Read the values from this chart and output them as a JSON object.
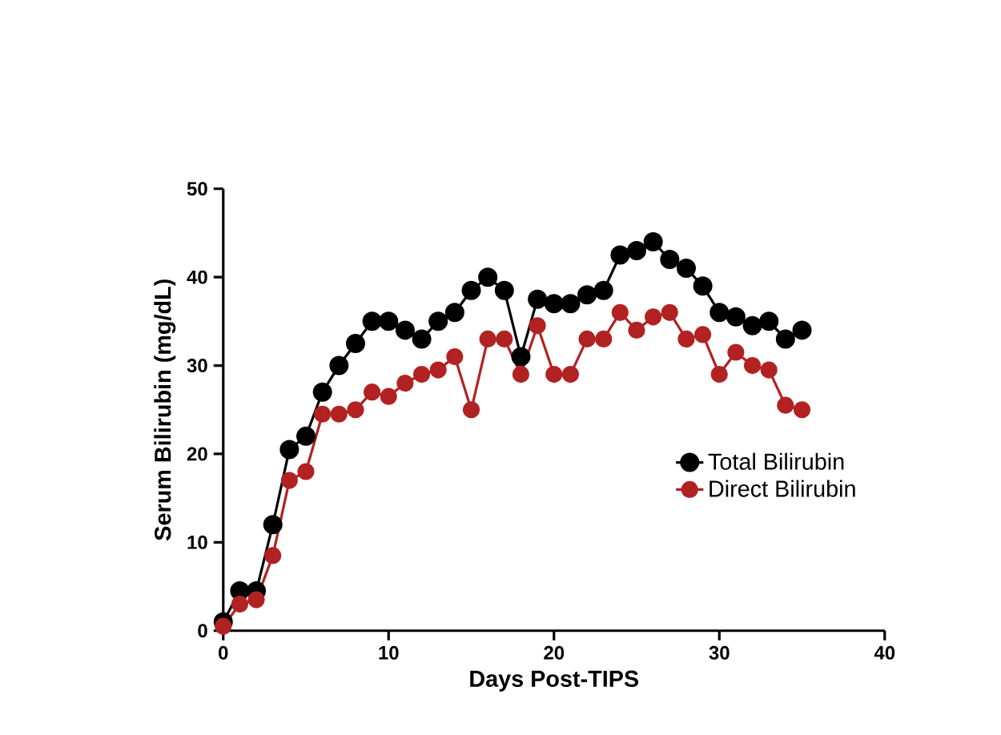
{
  "chart_data": {
    "type": "line",
    "xlabel": "Days Post-TIPS",
    "ylabel": "Serum Bilirubin (mg/dL)",
    "x": [
      0,
      1,
      2,
      3,
      4,
      5,
      6,
      7,
      8,
      9,
      10,
      11,
      12,
      13,
      14,
      15,
      16,
      17,
      18,
      19,
      20,
      21,
      22,
      23,
      24,
      25,
      26,
      27,
      28,
      29,
      30,
      31,
      32,
      33,
      34,
      35
    ],
    "series": [
      {
        "name": "Total Bilirubin",
        "color": "#000000",
        "values": [
          1,
          4.5,
          4.5,
          12,
          20.5,
          22,
          27,
          30,
          32.5,
          35,
          35,
          34,
          33,
          35,
          36,
          38.5,
          40,
          38.5,
          31,
          37.5,
          37,
          37,
          38,
          38.5,
          42.5,
          43,
          44,
          42,
          41,
          39,
          36,
          35.5,
          34.5,
          35,
          33,
          34
        ]
      },
      {
        "name": "Direct Bilirubin",
        "color": "#b22222",
        "values": [
          0.5,
          3,
          3.5,
          8.5,
          17,
          18,
          24.5,
          24.5,
          25,
          27,
          26.5,
          28,
          29,
          29.5,
          31,
          25,
          33,
          33,
          29,
          34.5,
          29,
          29,
          33,
          33,
          36,
          34,
          35.5,
          36,
          33,
          33.5,
          29,
          31.5,
          30,
          29.5,
          25.5,
          25
        ]
      }
    ],
    "xlim": [
      0,
      40
    ],
    "ylim": [
      0,
      50
    ],
    "xticks": [
      0,
      10,
      20,
      30,
      40
    ],
    "yticks": [
      0,
      10,
      20,
      30,
      40,
      50
    ],
    "grid": false,
    "legend": "center right",
    "marker": "circle",
    "line_style": "solid"
  }
}
